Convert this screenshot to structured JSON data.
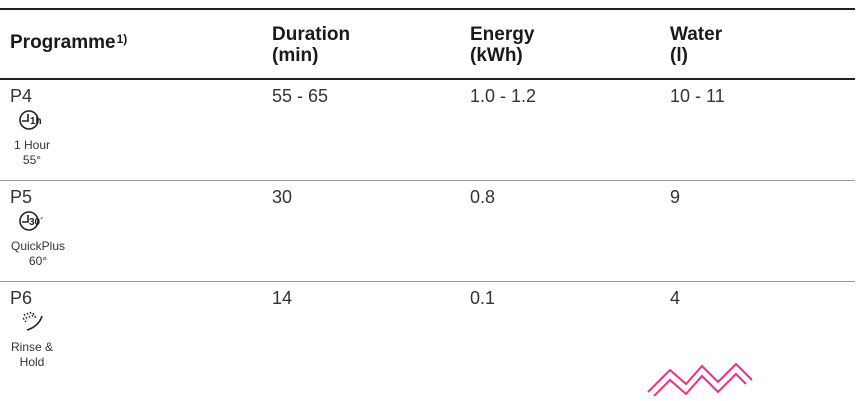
{
  "columns": [
    {
      "line1": "Programme",
      "line2": "",
      "sup": "1)"
    },
    {
      "line1": "Duration",
      "line2": "(min)",
      "sup": ""
    },
    {
      "line1": "Energy",
      "line2": "(kWh)",
      "sup": ""
    },
    {
      "line1": "Water",
      "line2": "(l)",
      "sup": ""
    }
  ],
  "rows": [
    {
      "code": "P4",
      "icon": "clock-1h-icon",
      "icon_text": "1h",
      "name_line1": "1 Hour",
      "name_line2": "55°",
      "duration": "55 - 65",
      "energy": "1.0 - 1.2",
      "water": "10 - 11"
    },
    {
      "code": "P5",
      "icon": "clock-30-icon",
      "icon_text": "30´",
      "name_line1": "QuickPlus",
      "name_line2": "60°",
      "duration": "30",
      "energy": "0.8",
      "water": "9"
    },
    {
      "code": "P6",
      "icon": "rinse-spray-icon",
      "icon_text": "",
      "name_line1": "Rinse &",
      "name_line2": "Hold",
      "duration": "14",
      "energy": "0.1",
      "water": "4"
    }
  ],
  "watermark": {
    "icon": "watermark-m-logo",
    "color": "#e8308c"
  }
}
